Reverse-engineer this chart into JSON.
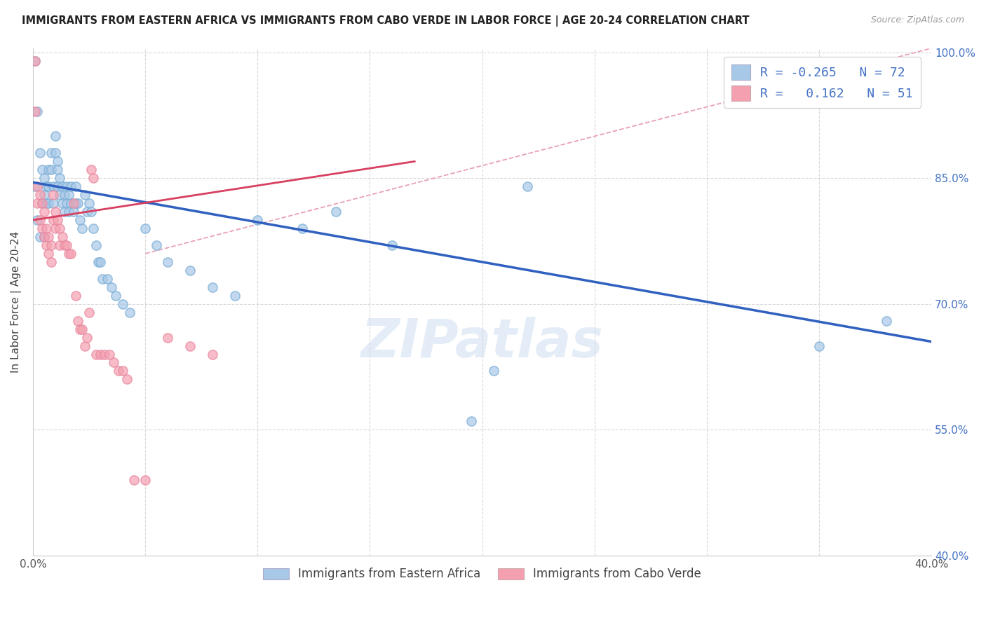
{
  "title": "IMMIGRANTS FROM EASTERN AFRICA VS IMMIGRANTS FROM CABO VERDE IN LABOR FORCE | AGE 20-24 CORRELATION CHART",
  "source": "Source: ZipAtlas.com",
  "ylabel": "In Labor Force | Age 20-24",
  "xlim": [
    0.0,
    0.4
  ],
  "ylim": [
    0.4,
    1.005
  ],
  "xticks": [
    0.0,
    0.05,
    0.1,
    0.15,
    0.2,
    0.25,
    0.3,
    0.35,
    0.4
  ],
  "yticks": [
    0.4,
    0.55,
    0.7,
    0.85,
    1.0
  ],
  "blue_R": -0.265,
  "blue_N": 72,
  "pink_R": 0.162,
  "pink_N": 51,
  "blue_color": "#a8c8e8",
  "pink_color": "#f4a0b0",
  "blue_edge_color": "#7aaed6",
  "pink_edge_color": "#e888a0",
  "blue_line_color": "#3060c0",
  "pink_line_color": "#d84060",
  "dashed_line_color": "#e8a0b8",
  "watermark": "ZIPatlas",
  "blue_line_x0": 0.0,
  "blue_line_y0": 0.845,
  "blue_line_x1": 0.4,
  "blue_line_y1": 0.655,
  "pink_line_x0": 0.0,
  "pink_line_y0": 0.8,
  "pink_line_x1": 0.17,
  "pink_line_y1": 0.87,
  "dash_line_x0": 0.05,
  "dash_line_y0": 0.76,
  "dash_line_x1": 0.4,
  "dash_line_y1": 1.005,
  "blue_scatter_x": [
    0.001,
    0.001,
    0.002,
    0.002,
    0.003,
    0.003,
    0.004,
    0.004,
    0.005,
    0.005,
    0.005,
    0.006,
    0.006,
    0.007,
    0.007,
    0.007,
    0.008,
    0.008,
    0.009,
    0.009,
    0.01,
    0.01,
    0.011,
    0.011,
    0.011,
    0.012,
    0.012,
    0.013,
    0.013,
    0.014,
    0.014,
    0.015,
    0.015,
    0.016,
    0.016,
    0.017,
    0.017,
    0.018,
    0.019,
    0.019,
    0.02,
    0.021,
    0.022,
    0.023,
    0.024,
    0.025,
    0.026,
    0.027,
    0.028,
    0.029,
    0.03,
    0.031,
    0.033,
    0.035,
    0.037,
    0.04,
    0.043,
    0.05,
    0.055,
    0.06,
    0.07,
    0.08,
    0.09,
    0.1,
    0.12,
    0.135,
    0.16,
    0.195,
    0.205,
    0.22,
    0.35,
    0.38
  ],
  "blue_scatter_y": [
    0.99,
    0.84,
    0.93,
    0.8,
    0.88,
    0.78,
    0.86,
    0.82,
    0.85,
    0.83,
    0.78,
    0.84,
    0.82,
    0.86,
    0.84,
    0.82,
    0.88,
    0.86,
    0.84,
    0.82,
    0.9,
    0.88,
    0.87,
    0.86,
    0.84,
    0.85,
    0.83,
    0.84,
    0.82,
    0.83,
    0.81,
    0.84,
    0.82,
    0.83,
    0.81,
    0.84,
    0.82,
    0.81,
    0.84,
    0.82,
    0.82,
    0.8,
    0.79,
    0.83,
    0.81,
    0.82,
    0.81,
    0.79,
    0.77,
    0.75,
    0.75,
    0.73,
    0.73,
    0.72,
    0.71,
    0.7,
    0.69,
    0.79,
    0.77,
    0.75,
    0.74,
    0.72,
    0.71,
    0.8,
    0.79,
    0.81,
    0.77,
    0.56,
    0.62,
    0.84,
    0.65,
    0.68
  ],
  "pink_scatter_x": [
    0.001,
    0.001,
    0.002,
    0.002,
    0.003,
    0.003,
    0.004,
    0.004,
    0.005,
    0.005,
    0.006,
    0.006,
    0.007,
    0.007,
    0.008,
    0.008,
    0.009,
    0.009,
    0.01,
    0.01,
    0.011,
    0.012,
    0.012,
    0.013,
    0.014,
    0.015,
    0.016,
    0.017,
    0.018,
    0.019,
    0.02,
    0.021,
    0.022,
    0.023,
    0.024,
    0.025,
    0.026,
    0.027,
    0.028,
    0.03,
    0.032,
    0.034,
    0.036,
    0.038,
    0.04,
    0.042,
    0.045,
    0.05,
    0.06,
    0.07,
    0.08
  ],
  "pink_scatter_y": [
    0.99,
    0.93,
    0.84,
    0.82,
    0.83,
    0.8,
    0.82,
    0.79,
    0.81,
    0.78,
    0.79,
    0.77,
    0.78,
    0.76,
    0.77,
    0.75,
    0.83,
    0.8,
    0.81,
    0.79,
    0.8,
    0.79,
    0.77,
    0.78,
    0.77,
    0.77,
    0.76,
    0.76,
    0.82,
    0.71,
    0.68,
    0.67,
    0.67,
    0.65,
    0.66,
    0.69,
    0.86,
    0.85,
    0.64,
    0.64,
    0.64,
    0.64,
    0.63,
    0.62,
    0.62,
    0.61,
    0.49,
    0.49,
    0.66,
    0.65,
    0.64
  ]
}
